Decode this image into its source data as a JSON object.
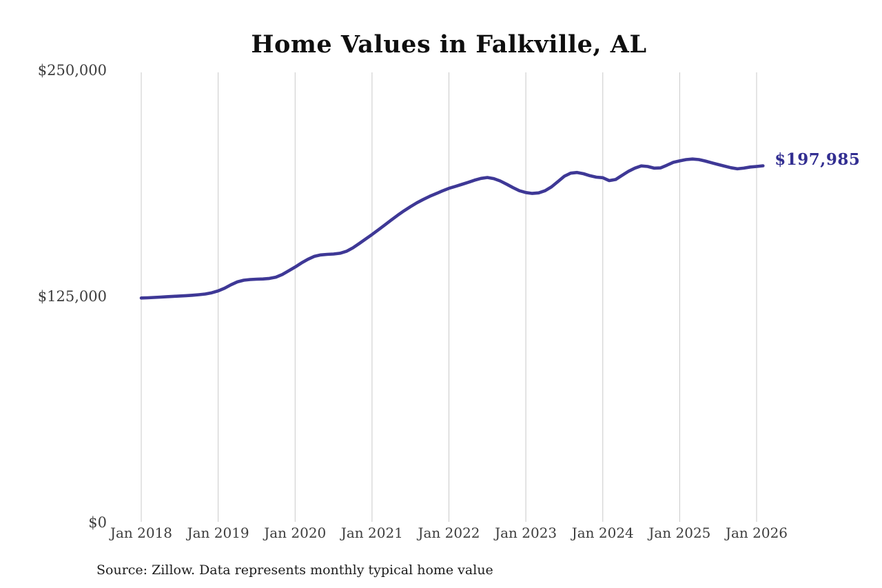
{
  "title": "Home Values in Falkville, AL",
  "source_note": "Source: Zillow. Data represents monthly typical home value",
  "end_label": "$197,985",
  "colors": {
    "line": "#3e3896",
    "end_label": "#322e91",
    "grid": "#c9c9c9",
    "title_text": "#0f0f0f",
    "axis_text": "#3d3d3d",
    "source_text": "#1c1c1c",
    "background": "#ffffff"
  },
  "chart_data": {
    "type": "line",
    "title": "Home Values in Falkville, AL",
    "xlabel": "",
    "ylabel": "",
    "ylim": [
      0,
      250000
    ],
    "grid": "vertical-only",
    "legend": "none",
    "x_interval": "monthly",
    "x_start": "Jan 2018",
    "x_end": "Feb 2026",
    "x_tick_labels": [
      "Jan 2018",
      "Jan 2019",
      "Jan 2020",
      "Jan 2021",
      "Jan 2022",
      "Jan 2023",
      "Jan 2024",
      "Jan 2025",
      "Jan 2026"
    ],
    "y_ticks": [
      {
        "label": "$250,000",
        "value": 250000
      },
      {
        "label": "$125,000",
        "value": 125000
      },
      {
        "label": "$0",
        "value": 0
      }
    ],
    "final_value": 197985,
    "series": [
      {
        "name": "Monthly typical home value",
        "values": [
          124900,
          125000,
          125200,
          125400,
          125600,
          125800,
          126000,
          126200,
          126400,
          126700,
          127100,
          127800,
          128800,
          130300,
          132200,
          133800,
          134700,
          135100,
          135300,
          135400,
          135700,
          136400,
          137900,
          139900,
          142000,
          144300,
          146300,
          147900,
          148700,
          149000,
          149200,
          149600,
          150700,
          152600,
          155000,
          157500,
          160000,
          162600,
          165300,
          168000,
          170600,
          173100,
          175400,
          177500,
          179400,
          181100,
          182600,
          184100,
          185500,
          186600,
          187700,
          188800,
          190000,
          191000,
          191500,
          190900,
          189600,
          187800,
          185900,
          184200,
          183200,
          182700,
          183000,
          184200,
          186300,
          189200,
          192200,
          193900,
          194300,
          193600,
          192500,
          191700,
          191400,
          189800,
          190400,
          192700,
          194900,
          196700,
          197900,
          197600,
          196700,
          196800,
          198300,
          199900,
          200700,
          201400,
          201700,
          201400,
          200600,
          199600,
          198700,
          197800,
          196900,
          196300,
          196700,
          197300,
          197600,
          197985
        ]
      }
    ]
  }
}
